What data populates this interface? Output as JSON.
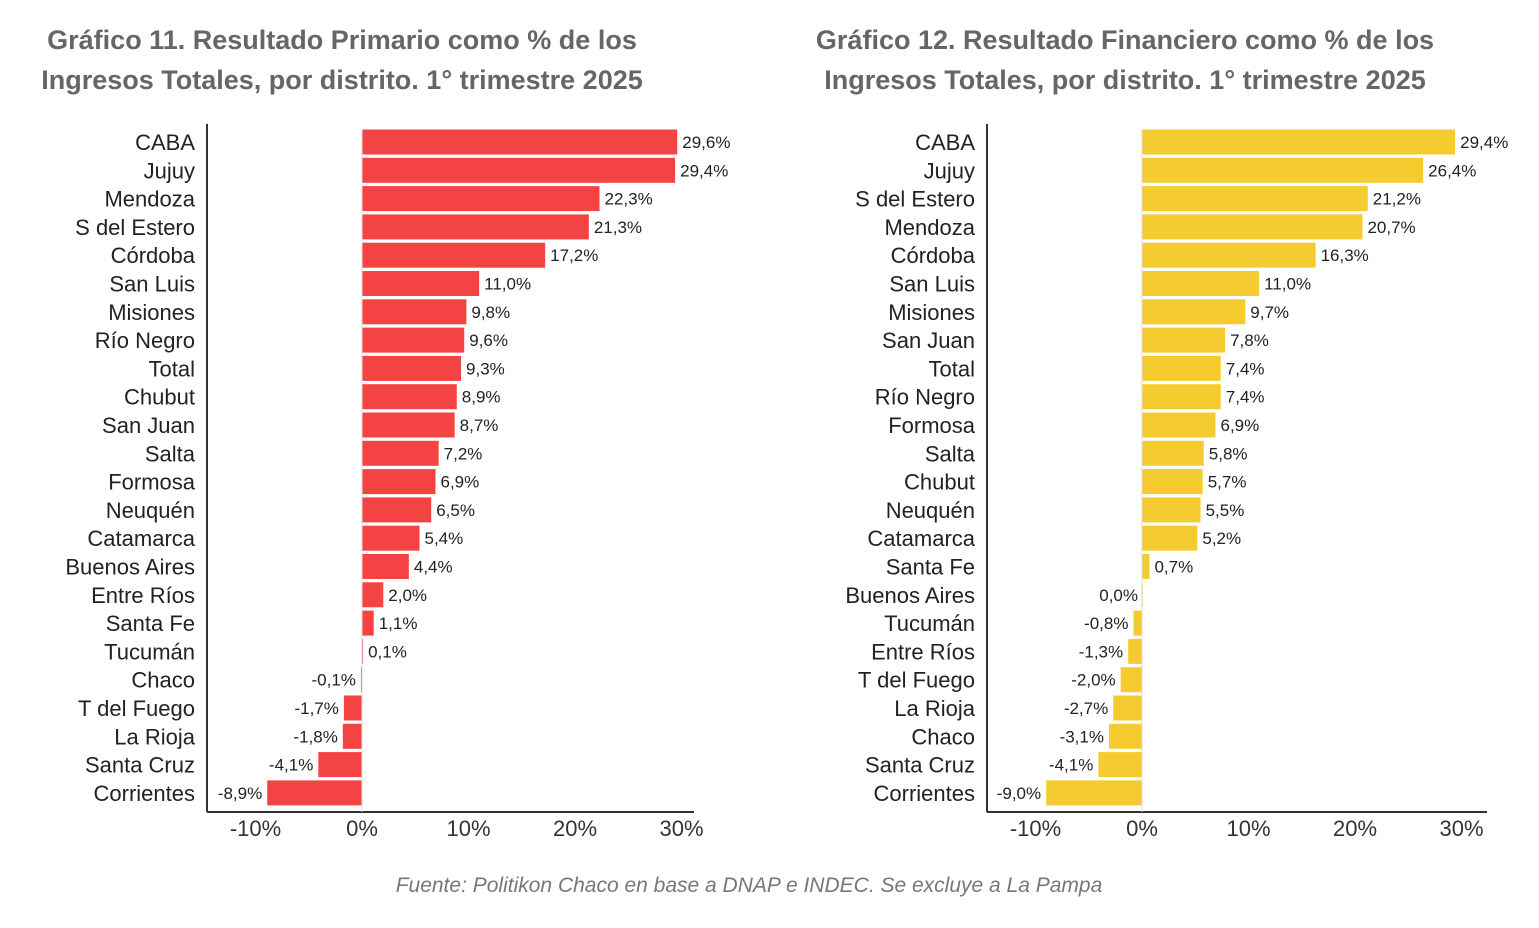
{
  "chart_data": [
    {
      "type": "bar",
      "orientation": "horizontal",
      "title": "Gráfico 11. Resultado Primario como % de los Ingresos Totales, por distrito. 1° trimestre 2025",
      "categories": [
        "CABA",
        "Jujuy",
        "Mendoza",
        "S del Estero",
        "Córdoba",
        "San Luis",
        "Misiones",
        "Río Negro",
        "Total",
        "Chubut",
        "San Juan",
        "Salta",
        "Formosa",
        "Neuquén",
        "Catamarca",
        "Buenos Aires",
        "Entre Ríos",
        "Santa Fe",
        "Tucumán",
        "Chaco",
        "T del Fuego",
        "La Rioja",
        "Santa Cruz",
        "Corrientes"
      ],
      "values": [
        29.6,
        29.4,
        22.3,
        21.3,
        17.2,
        11.0,
        9.8,
        9.6,
        9.3,
        8.9,
        8.7,
        7.2,
        6.9,
        6.5,
        5.4,
        4.4,
        2.0,
        1.1,
        0.1,
        -0.1,
        -1.7,
        -1.8,
        -4.1,
        -8.9
      ],
      "data_labels": [
        "29,6%",
        "29,4%",
        "22,3%",
        "21,3%",
        "17,2%",
        "11,0%",
        "9,8%",
        "9,6%",
        "9,3%",
        "8,9%",
        "8,7%",
        "7,2%",
        "6,9%",
        "6,5%",
        "5,4%",
        "4,4%",
        "2,0%",
        "1,1%",
        "0,1%",
        "-0,1%",
        "-1,7%",
        "-1,8%",
        "-4,1%",
        "-8,9%"
      ],
      "xlim": [
        -10,
        30
      ],
      "x_ticks": [
        "-10%",
        "0%",
        "10%",
        "20%",
        "30%"
      ],
      "color": "#f44343",
      "grid": false
    },
    {
      "type": "bar",
      "orientation": "horizontal",
      "title": "Gráfico 12. Resultado Financiero como % de los Ingresos Totales, por distrito. 1° trimestre 2025",
      "categories": [
        "CABA",
        "Jujuy",
        "S del Estero",
        "Mendoza",
        "Córdoba",
        "San Luis",
        "Misiones",
        "San Juan",
        "Total",
        "Río Negro",
        "Formosa",
        "Salta",
        "Chubut",
        "Neuquén",
        "Catamarca",
        "Santa Fe",
        "Buenos Aires",
        "Tucumán",
        "Entre Ríos",
        "T del Fuego",
        "La Rioja",
        "Chaco",
        "Santa Cruz",
        "Corrientes"
      ],
      "values": [
        29.4,
        26.4,
        21.2,
        20.7,
        16.3,
        11.0,
        9.7,
        7.8,
        7.4,
        7.4,
        6.9,
        5.8,
        5.7,
        5.5,
        5.2,
        0.7,
        0.0,
        -0.8,
        -1.3,
        -2.0,
        -2.7,
        -3.1,
        -4.1,
        -9.0
      ],
      "data_labels": [
        "29,4%",
        "26,4%",
        "21,2%",
        "20,7%",
        "16,3%",
        "11,0%",
        "9,7%",
        "7,8%",
        "7,4%",
        "7,4%",
        "6,9%",
        "5,8%",
        "5,7%",
        "5,5%",
        "5,2%",
        "0,7%",
        "0,0%",
        "-0,8%",
        "-1,3%",
        "-2,0%",
        "-2,7%",
        "-3,1%",
        "-4,1%",
        "-9,0%"
      ],
      "xlim": [
        -10,
        30
      ],
      "x_ticks": [
        "-10%",
        "0%",
        "10%",
        "20%",
        "30%"
      ],
      "color": "#f5cc2f",
      "grid": false
    }
  ],
  "titles": {
    "left": "Gráfico 11. Resultado Primario como % de los Ingresos Totales, por distrito. 1° trimestre 2025",
    "right": "Gráfico 12. Resultado Financiero como % de los Ingresos Totales, por distrito. 1° trimestre 2025"
  },
  "footer": {
    "source": "Fuente: Politikon Chaco en base a DNAP e INDEC. Se excluye a La Pampa"
  }
}
